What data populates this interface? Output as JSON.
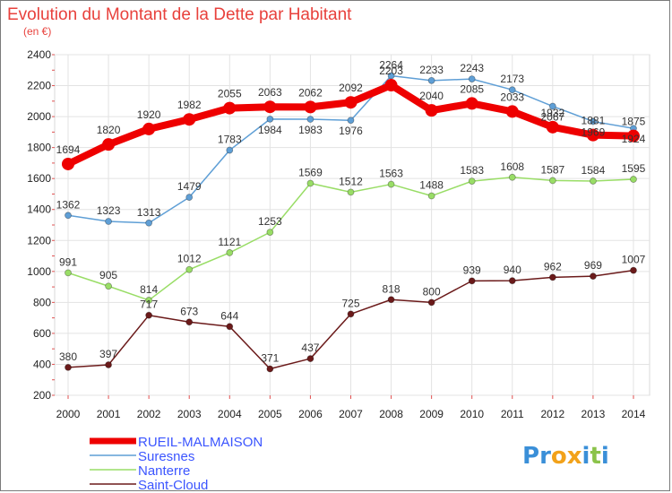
{
  "chart_data": {
    "type": "line",
    "title": "Evolution du Montant de la Dette par Habitant",
    "subtitle": "(en €)",
    "xlabel": "",
    "ylabel": "",
    "x": [
      "2000",
      "2001",
      "2002",
      "2003",
      "2004",
      "2005",
      "2006",
      "2007",
      "2008",
      "2009",
      "2010",
      "2011",
      "2012",
      "2013",
      "2014"
    ],
    "ylim": [
      200,
      2400
    ],
    "yticks": [
      200,
      400,
      600,
      800,
      1000,
      1200,
      1400,
      1600,
      1800,
      2000,
      2200,
      2400
    ],
    "grid": true,
    "legend_position": "bottom-left",
    "series": [
      {
        "name": "Saint-Cloud",
        "color": "#6b1a1a",
        "values": [
          380,
          397,
          717,
          673,
          644,
          371,
          437,
          725,
          818,
          800,
          939,
          940,
          962,
          969,
          1007
        ]
      },
      {
        "name": "Nanterre",
        "color": "#99dd66",
        "values": [
          991,
          905,
          814,
          1012,
          1121,
          1253,
          1569,
          1512,
          1563,
          1488,
          1583,
          1608,
          1587,
          1584,
          1595
        ]
      },
      {
        "name": "Suresnes",
        "color": "#5f9fd6",
        "values": [
          1362,
          1323,
          1313,
          1479,
          1783,
          1984,
          1983,
          1976,
          2264,
          2233,
          2243,
          2173,
          2067,
          1969,
          1924
        ]
      },
      {
        "name": "RUEIL-MALMAISON",
        "color": "#ee0000",
        "values": [
          1694,
          1820,
          1920,
          1982,
          2055,
          2063,
          2062,
          2092,
          2203,
          2040,
          2085,
          2033,
          1932,
          1881,
          1875
        ]
      }
    ]
  },
  "legend": {
    "items": [
      "RUEIL-MALMAISON",
      "Suresnes",
      "Nanterre",
      "Saint-Cloud"
    ]
  },
  "logo": {
    "letters": [
      "P",
      "r",
      "o",
      "x",
      "i",
      "t",
      "i"
    ],
    "colors": [
      "#3a8fd8",
      "#3a8fd8",
      "#f2a21a",
      "#f2a21a",
      "#3a8fd8",
      "#8bc34a",
      "#3a8fd8"
    ]
  }
}
